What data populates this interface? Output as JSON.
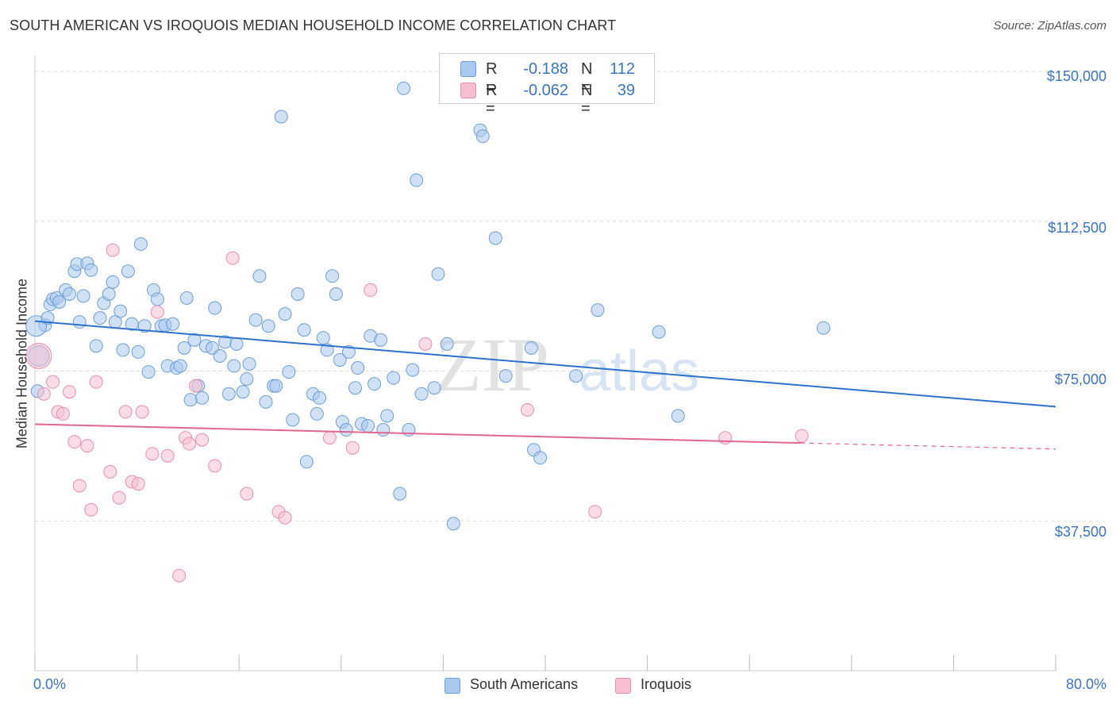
{
  "title": "SOUTH AMERICAN VS IROQUOIS MEDIAN HOUSEHOLD INCOME CORRELATION CHART",
  "source": "Source: ZipAtlas.com",
  "watermark": {
    "zip": "ZIP",
    "atlas": "atlas"
  },
  "colors": {
    "blue_fill": "#aac9ee",
    "blue_stroke": "#6b9fd8",
    "blue_line": "#2d72cc",
    "pink_fill": "#f5bfd1",
    "pink_stroke": "#e88fae",
    "pink_line": "#e2668f",
    "axis_text": "#3a74c4",
    "grid": "#d9d9d9"
  },
  "correlation_box": {
    "rows": [
      {
        "r_label": "R =",
        "r_value": "-0.188",
        "n_label": "N =",
        "n_value": "112",
        "color": "#aac9ee",
        "border": "#6b9fd8"
      },
      {
        "r_label": "R =",
        "r_value": "-0.062",
        "n_label": "N =",
        "n_value": "39",
        "color": "#f5bfd1",
        "border": "#e88fae"
      }
    ]
  },
  "legend": [
    {
      "label": "South Americans",
      "color": "#aac9ee",
      "border": "#6b9fd8"
    },
    {
      "label": "Iroquois",
      "color": "#f5bfd1",
      "border": "#e88fae"
    }
  ],
  "chart_data": {
    "type": "scatter",
    "title": "SOUTH AMERICAN VS IROQUOIS MEDIAN HOUSEHOLD INCOME CORRELATION CHART",
    "xlabel": "",
    "ylabel": "Median Household Income",
    "x_tick_labels": [
      "0.0%",
      "80.0%"
    ],
    "y_tick_labels": [
      "$150,000",
      "$112,500",
      "$75,000",
      "$37,500"
    ],
    "y_ticks": [
      150000,
      112500,
      75000,
      37500
    ],
    "xlim": [
      0,
      80
    ],
    "ylim": [
      0,
      154000
    ],
    "grid": true,
    "legend_position": "bottom-center",
    "series": [
      {
        "name": "South Americans",
        "trend": {
          "x": [
            0,
            80
          ],
          "y": [
            87500,
            66100
          ]
        },
        "points": [
          [
            0.2,
            70000
          ],
          [
            0.8,
            86500
          ],
          [
            1.2,
            91700
          ],
          [
            1.4,
            93000
          ],
          [
            1.7,
            93300
          ],
          [
            1.9,
            92300
          ],
          [
            2.4,
            95300
          ],
          [
            2.7,
            94300
          ],
          [
            3.1,
            100000
          ],
          [
            3.3,
            101800
          ],
          [
            3.8,
            93800
          ],
          [
            4.1,
            102000
          ],
          [
            4.4,
            100300
          ],
          [
            4.8,
            81300
          ],
          [
            5.1,
            88300
          ],
          [
            5.4,
            92000
          ],
          [
            5.8,
            94300
          ],
          [
            6.1,
            97300
          ],
          [
            6.3,
            87300
          ],
          [
            6.7,
            90000
          ],
          [
            6.9,
            80300
          ],
          [
            7.3,
            100000
          ],
          [
            7.6,
            86800
          ],
          [
            8.1,
            79800
          ],
          [
            8.3,
            106800
          ],
          [
            8.6,
            86300
          ],
          [
            8.9,
            74800
          ],
          [
            9.3,
            95300
          ],
          [
            9.6,
            93000
          ],
          [
            9.9,
            86300
          ],
          [
            10.2,
            86500
          ],
          [
            10.4,
            76300
          ],
          [
            10.8,
            86800
          ],
          [
            11.1,
            75800
          ],
          [
            11.4,
            76300
          ],
          [
            11.7,
            80800
          ],
          [
            11.9,
            93300
          ],
          [
            12.2,
            67800
          ],
          [
            12.5,
            82800
          ],
          [
            12.8,
            71300
          ],
          [
            13.1,
            68300
          ],
          [
            13.4,
            81300
          ],
          [
            13.9,
            80800
          ],
          [
            14.1,
            90800
          ],
          [
            14.5,
            78800
          ],
          [
            14.9,
            82300
          ],
          [
            15.2,
            69300
          ],
          [
            15.6,
            76300
          ],
          [
            15.8,
            81800
          ],
          [
            16.3,
            69800
          ],
          [
            16.6,
            73000
          ],
          [
            16.8,
            76800
          ],
          [
            17.3,
            87800
          ],
          [
            17.6,
            98800
          ],
          [
            18.1,
            67300
          ],
          [
            18.3,
            86300
          ],
          [
            18.7,
            71300
          ],
          [
            18.9,
            71300
          ],
          [
            19.3,
            138700
          ],
          [
            19.6,
            89300
          ],
          [
            19.9,
            74800
          ],
          [
            20.2,
            62800
          ],
          [
            20.6,
            94300
          ],
          [
            21.1,
            85300
          ],
          [
            21.3,
            52300
          ],
          [
            21.8,
            69300
          ],
          [
            22.1,
            64300
          ],
          [
            22.3,
            68300
          ],
          [
            22.6,
            83300
          ],
          [
            22.9,
            80300
          ],
          [
            23.3,
            98800
          ],
          [
            23.6,
            94300
          ],
          [
            23.9,
            77800
          ],
          [
            24.1,
            62300
          ],
          [
            24.4,
            60300
          ],
          [
            24.6,
            79800
          ],
          [
            25.1,
            70800
          ],
          [
            25.3,
            75800
          ],
          [
            25.6,
            61800
          ],
          [
            26.1,
            61300
          ],
          [
            26.3,
            83800
          ],
          [
            26.6,
            71800
          ],
          [
            27.1,
            82800
          ],
          [
            27.3,
            60300
          ],
          [
            27.6,
            63800
          ],
          [
            28.1,
            73300
          ],
          [
            28.6,
            44300
          ],
          [
            28.9,
            145800
          ],
          [
            29.3,
            60300
          ],
          [
            29.6,
            75300
          ],
          [
            29.9,
            122800
          ],
          [
            30.3,
            69300
          ],
          [
            31.3,
            70800
          ],
          [
            31.6,
            99300
          ],
          [
            32.3,
            81800
          ],
          [
            32.8,
            36800
          ],
          [
            34.9,
            135300
          ],
          [
            35.1,
            133800
          ],
          [
            36.1,
            108300
          ],
          [
            36.9,
            73800
          ],
          [
            38.9,
            80800
          ],
          [
            39.1,
            55300
          ],
          [
            39.6,
            53300
          ],
          [
            42.4,
            73800
          ],
          [
            44.1,
            90300
          ],
          [
            48.9,
            84800
          ],
          [
            50.4,
            63800
          ],
          [
            61.8,
            85800
          ],
          [
            0.1,
            86300
          ],
          [
            0.3,
            78800
          ],
          [
            1.0,
            88300
          ],
          [
            3.5,
            87300
          ]
        ]
      },
      {
        "name": "Iroquois",
        "trend": {
          "x": [
            0,
            60
          ],
          "y": [
            61700,
            57000
          ]
        },
        "trend_dashed": {
          "x": [
            60,
            80
          ],
          "y": [
            57000,
            55500
          ]
        },
        "points": [
          [
            0.3,
            78800
          ],
          [
            0.7,
            69300
          ],
          [
            1.4,
            72300
          ],
          [
            1.8,
            64800
          ],
          [
            2.2,
            64300
          ],
          [
            2.7,
            69800
          ],
          [
            3.1,
            57300
          ],
          [
            3.5,
            46300
          ],
          [
            4.1,
            56300
          ],
          [
            4.4,
            40300
          ],
          [
            4.8,
            72300
          ],
          [
            5.9,
            49800
          ],
          [
            6.1,
            105300
          ],
          [
            6.6,
            43300
          ],
          [
            7.1,
            64800
          ],
          [
            7.6,
            47300
          ],
          [
            8.1,
            46800
          ],
          [
            8.4,
            64800
          ],
          [
            9.2,
            54300
          ],
          [
            9.6,
            89800
          ],
          [
            10.4,
            53800
          ],
          [
            11.3,
            23800
          ],
          [
            11.8,
            58300
          ],
          [
            12.1,
            56800
          ],
          [
            12.6,
            71300
          ],
          [
            13.1,
            57800
          ],
          [
            14.1,
            51300
          ],
          [
            15.5,
            103300
          ],
          [
            16.6,
            44300
          ],
          [
            19.1,
            39800
          ],
          [
            19.6,
            38300
          ],
          [
            23.1,
            58300
          ],
          [
            24.9,
            55800
          ],
          [
            26.3,
            95300
          ],
          [
            30.6,
            81800
          ],
          [
            38.6,
            65300
          ],
          [
            43.9,
            39800
          ],
          [
            54.1,
            58300
          ],
          [
            60.1,
            58800
          ]
        ]
      }
    ]
  }
}
